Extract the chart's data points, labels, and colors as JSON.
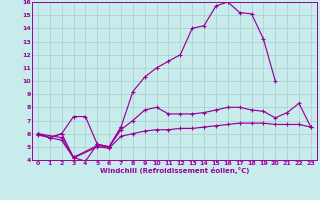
{
  "bg_color": "#c8ecec",
  "line_color": "#990099",
  "grid_color": "#aacccc",
  "xlabel": "Windchill (Refroidissement éolien,°C)",
  "xlim": [
    -0.5,
    23.5
  ],
  "ylim": [
    4,
    16
  ],
  "xticks": [
    0,
    1,
    2,
    3,
    4,
    5,
    6,
    7,
    8,
    9,
    10,
    11,
    12,
    13,
    14,
    15,
    16,
    17,
    18,
    19,
    20,
    21,
    22,
    23
  ],
  "yticks": [
    4,
    5,
    6,
    7,
    8,
    9,
    10,
    11,
    12,
    13,
    14,
    15,
    16
  ],
  "line1_x": [
    0,
    1,
    2,
    3,
    4,
    5,
    6,
    7,
    8,
    9,
    10,
    11,
    12,
    13,
    14,
    15,
    16,
    17,
    18,
    19,
    20
  ],
  "line1_y": [
    6.0,
    5.7,
    6.0,
    7.3,
    7.3,
    5.2,
    5.0,
    6.5,
    9.2,
    10.3,
    11.0,
    11.5,
    12.0,
    14.0,
    14.2,
    15.7,
    16.0,
    15.2,
    15.1,
    13.2,
    10.0
  ],
  "line2_x": [
    0,
    1,
    2,
    3,
    4,
    5,
    6,
    7
  ],
  "line2_y": [
    6.0,
    5.7,
    6.0,
    4.2,
    3.9,
    5.2,
    5.0,
    6.5
  ],
  "line3_x": [
    0,
    2,
    3,
    5,
    6,
    7,
    8,
    9,
    10,
    11,
    12,
    13,
    14,
    15,
    16,
    17,
    18,
    19,
    20,
    21,
    22,
    23
  ],
  "line3_y": [
    6.0,
    5.7,
    4.2,
    5.1,
    5.0,
    6.3,
    7.0,
    7.8,
    8.0,
    7.5,
    7.5,
    7.5,
    7.6,
    7.8,
    8.0,
    8.0,
    7.8,
    7.7,
    7.2,
    7.6,
    8.3,
    6.5
  ],
  "line4_x": [
    0,
    2,
    3,
    5,
    6,
    7,
    8,
    9,
    10,
    11,
    12,
    13,
    14,
    15,
    16,
    17,
    18,
    19,
    20,
    21,
    22,
    23
  ],
  "line4_y": [
    5.9,
    5.5,
    4.15,
    5.0,
    4.9,
    5.8,
    6.0,
    6.2,
    6.3,
    6.3,
    6.4,
    6.4,
    6.5,
    6.6,
    6.7,
    6.8,
    6.8,
    6.8,
    6.7,
    6.7,
    6.7,
    6.5
  ]
}
